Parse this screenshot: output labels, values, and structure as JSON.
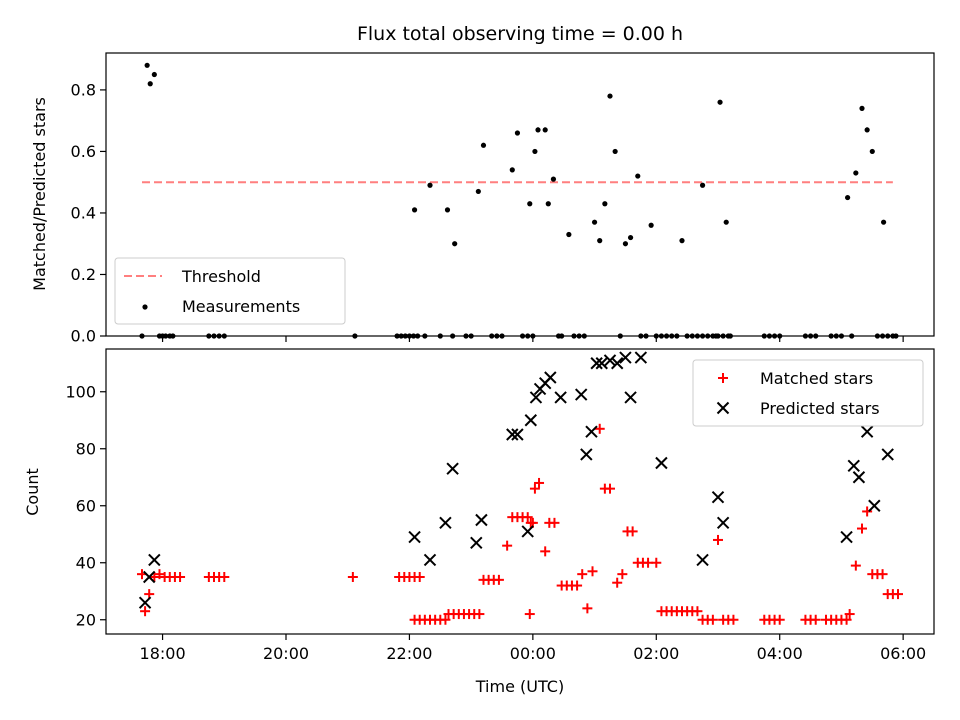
{
  "chart_data": [
    {
      "type": "scatter",
      "title": "Flux total observing time = 0.00 h",
      "xlabel": "",
      "ylabel": "Matched/Predicted stars",
      "ylim": [
        0,
        0.92
      ],
      "yticks": [
        "0.0",
        "0.2",
        "0.4",
        "0.6",
        "0.8"
      ],
      "xlim": [
        "17:05",
        "06:30"
      ],
      "grid": false,
      "legend_placement": "lower-left",
      "legend": [
        {
          "label": "Threshold",
          "kind": "dashed-line",
          "color": "#ff7f7f"
        },
        {
          "label": "Measurements",
          "kind": "dot",
          "color": "#000000"
        }
      ],
      "threshold": {
        "name": "Threshold",
        "value": 0.5,
        "x_range": [
          "17:40",
          "05:50"
        ]
      },
      "series": [
        {
          "name": "Measurements",
          "color": "#000000",
          "points": [
            [
              "17:40",
              0
            ],
            [
              "17:45",
              0.88
            ],
            [
              "17:48",
              0.82
            ],
            [
              "17:52",
              0.85
            ],
            [
              "17:57",
              0
            ],
            [
              "18:00",
              0
            ],
            [
              "18:03",
              0
            ],
            [
              "18:07",
              0
            ],
            [
              "18:10",
              0
            ],
            [
              "18:45",
              0
            ],
            [
              "18:50",
              0
            ],
            [
              "18:55",
              0
            ],
            [
              "19:00",
              0
            ],
            [
              "21:07",
              0
            ],
            [
              "21:48",
              0
            ],
            [
              "21:52",
              0
            ],
            [
              "21:56",
              0
            ],
            [
              "22:00",
              0
            ],
            [
              "22:04",
              0
            ],
            [
              "22:08",
              0
            ],
            [
              "22:05",
              0.41
            ],
            [
              "22:15",
              0
            ],
            [
              "22:20",
              0.49
            ],
            [
              "22:30",
              0
            ],
            [
              "22:37",
              0.41
            ],
            [
              "22:42",
              0
            ],
            [
              "22:44",
              0.3
            ],
            [
              "22:55",
              0
            ],
            [
              "23:00",
              0
            ],
            [
              "23:07",
              0.47
            ],
            [
              "23:12",
              0.62
            ],
            [
              "23:20",
              0
            ],
            [
              "23:25",
              0
            ],
            [
              "23:30",
              0
            ],
            [
              "23:40",
              0.54
            ],
            [
              "23:45",
              0.66
            ],
            [
              "23:50",
              0
            ],
            [
              "23:55",
              0
            ],
            [
              "23:57",
              0.43
            ],
            [
              "00:00",
              0
            ],
            [
              "00:02",
              0.6
            ],
            [
              "00:05",
              0.67
            ],
            [
              "00:12",
              0.67
            ],
            [
              "00:15",
              0.43
            ],
            [
              "00:20",
              0.51
            ],
            [
              "00:25",
              0
            ],
            [
              "00:28",
              0
            ],
            [
              "00:35",
              0.33
            ],
            [
              "00:40",
              0
            ],
            [
              "00:45",
              0
            ],
            [
              "00:50",
              0
            ],
            [
              "01:00",
              0.37
            ],
            [
              "01:05",
              0.31
            ],
            [
              "01:10",
              0.43
            ],
            [
              "01:15",
              0.78
            ],
            [
              "01:20",
              0.6
            ],
            [
              "01:25",
              0
            ],
            [
              "01:30",
              0.3
            ],
            [
              "01:35",
              0.32
            ],
            [
              "01:42",
              0.52
            ],
            [
              "01:45",
              0
            ],
            [
              "01:50",
              0
            ],
            [
              "01:55",
              0.36
            ],
            [
              "02:00",
              0
            ],
            [
              "02:05",
              0
            ],
            [
              "02:10",
              0
            ],
            [
              "02:15",
              0
            ],
            [
              "02:20",
              0
            ],
            [
              "02:25",
              0.31
            ],
            [
              "02:30",
              0
            ],
            [
              "02:35",
              0
            ],
            [
              "02:40",
              0
            ],
            [
              "02:45",
              0
            ],
            [
              "02:50",
              0
            ],
            [
              "02:55",
              0
            ],
            [
              "03:00",
              0
            ],
            [
              "03:05",
              0
            ],
            [
              "03:10",
              0
            ],
            [
              "02:45",
              0.49
            ],
            [
              "02:58",
              0
            ],
            [
              "03:02",
              0.76
            ],
            [
              "03:08",
              0.37
            ],
            [
              "03:12",
              0
            ],
            [
              "03:45",
              0
            ],
            [
              "03:50",
              0
            ],
            [
              "03:55",
              0
            ],
            [
              "04:00",
              0
            ],
            [
              "04:25",
              0
            ],
            [
              "04:30",
              0
            ],
            [
              "04:35",
              0
            ],
            [
              "04:50",
              0
            ],
            [
              "04:55",
              0
            ],
            [
              "05:00",
              0
            ],
            [
              "05:06",
              0.45
            ],
            [
              "05:10",
              0
            ],
            [
              "05:14",
              0.53
            ],
            [
              "05:20",
              0.74
            ],
            [
              "05:25",
              0.67
            ],
            [
              "05:30",
              0.6
            ],
            [
              "05:35",
              0
            ],
            [
              "05:40",
              0
            ],
            [
              "05:45",
              0
            ],
            [
              "05:41",
              0.37
            ],
            [
              "05:50",
              0
            ],
            [
              "05:53",
              0
            ]
          ]
        }
      ]
    },
    {
      "type": "scatter",
      "title": "",
      "xlabel": "Time (UTC)",
      "ylabel": "Count",
      "ylim": [
        15,
        115
      ],
      "yticks": [
        "20",
        "40",
        "60",
        "80",
        "100"
      ],
      "xlim": [
        "17:05",
        "06:30"
      ],
      "xticks": [
        "18:00",
        "20:00",
        "22:00",
        "00:00",
        "02:00",
        "04:00",
        "06:00"
      ],
      "grid": false,
      "legend_placement": "top-right",
      "legend": [
        {
          "label": "Matched stars",
          "kind": "plus",
          "color": "#ff0000"
        },
        {
          "label": "Predicted stars",
          "kind": "x",
          "color": "#000000"
        }
      ],
      "series": [
        {
          "name": "Matched stars",
          "color": "#ff0000",
          "marker": "plus",
          "points": [
            [
              "17:40",
              36
            ],
            [
              "17:43",
              23
            ],
            [
              "17:47",
              29
            ],
            [
              "17:52",
              35
            ],
            [
              "17:57",
              36
            ],
            [
              "18:02",
              35
            ],
            [
              "18:07",
              35
            ],
            [
              "18:12",
              35
            ],
            [
              "18:17",
              35
            ],
            [
              "18:45",
              35
            ],
            [
              "18:50",
              35
            ],
            [
              "18:55",
              35
            ],
            [
              "19:00",
              35
            ],
            [
              "21:05",
              35
            ],
            [
              "21:50",
              35
            ],
            [
              "21:55",
              35
            ],
            [
              "22:00",
              35
            ],
            [
              "22:05",
              35
            ],
            [
              "22:10",
              35
            ],
            [
              "22:05",
              20
            ],
            [
              "22:10",
              20
            ],
            [
              "22:15",
              20
            ],
            [
              "22:20",
              20
            ],
            [
              "22:25",
              20
            ],
            [
              "22:30",
              20
            ],
            [
              "22:35",
              20
            ],
            [
              "22:38",
              22
            ],
            [
              "22:43",
              22
            ],
            [
              "22:48",
              22
            ],
            [
              "22:53",
              22
            ],
            [
              "22:58",
              22
            ],
            [
              "23:03",
              22
            ],
            [
              "23:08",
              22
            ],
            [
              "23:12",
              34
            ],
            [
              "23:17",
              34
            ],
            [
              "23:22",
              34
            ],
            [
              "23:27",
              34
            ],
            [
              "23:35",
              46
            ],
            [
              "23:40",
              56
            ],
            [
              "23:45",
              56
            ],
            [
              "23:50",
              56
            ],
            [
              "23:55",
              56
            ],
            [
              "23:57",
              22
            ],
            [
              "23:58",
              54
            ],
            [
              "00:00",
              54
            ],
            [
              "00:02",
              66
            ],
            [
              "00:06",
              68
            ],
            [
              "00:12",
              44
            ],
            [
              "00:16",
              54
            ],
            [
              "00:21",
              54
            ],
            [
              "00:28",
              32
            ],
            [
              "00:33",
              32
            ],
            [
              "00:38",
              32
            ],
            [
              "00:43",
              32
            ],
            [
              "00:48",
              36
            ],
            [
              "00:53",
              24
            ],
            [
              "00:58",
              37
            ],
            [
              "01:05",
              87
            ],
            [
              "01:10",
              66
            ],
            [
              "01:15",
              66
            ],
            [
              "01:22",
              33
            ],
            [
              "01:27",
              36
            ],
            [
              "01:32",
              51
            ],
            [
              "01:37",
              51
            ],
            [
              "01:42",
              40
            ],
            [
              "01:47",
              40
            ],
            [
              "01:52",
              40
            ],
            [
              "02:00",
              40
            ],
            [
              "02:05",
              23
            ],
            [
              "02:10",
              23
            ],
            [
              "02:15",
              23
            ],
            [
              "02:20",
              23
            ],
            [
              "02:25",
              23
            ],
            [
              "02:30",
              23
            ],
            [
              "02:35",
              23
            ],
            [
              "02:40",
              23
            ],
            [
              "02:45",
              20
            ],
            [
              "02:50",
              20
            ],
            [
              "02:55",
              20
            ],
            [
              "03:00",
              48
            ],
            [
              "03:05",
              20
            ],
            [
              "03:10",
              20
            ],
            [
              "03:15",
              20
            ],
            [
              "03:45",
              20
            ],
            [
              "03:50",
              20
            ],
            [
              "03:55",
              20
            ],
            [
              "04:00",
              20
            ],
            [
              "04:25",
              20
            ],
            [
              "04:30",
              20
            ],
            [
              "04:35",
              20
            ],
            [
              "04:45",
              20
            ],
            [
              "04:50",
              20
            ],
            [
              "04:55",
              20
            ],
            [
              "05:00",
              20
            ],
            [
              "05:05",
              20
            ],
            [
              "05:08",
              22
            ],
            [
              "05:14",
              39
            ],
            [
              "05:20",
              52
            ],
            [
              "05:25",
              58
            ],
            [
              "05:30",
              36
            ],
            [
              "05:35",
              36
            ],
            [
              "05:40",
              36
            ],
            [
              "05:45",
              29
            ],
            [
              "05:50",
              29
            ],
            [
              "05:55",
              29
            ]
          ]
        },
        {
          "name": "Predicted stars",
          "color": "#000000",
          "marker": "x",
          "points": [
            [
              "17:43",
              26
            ],
            [
              "17:47",
              35
            ],
            [
              "17:52",
              41
            ],
            [
              "22:05",
              49
            ],
            [
              "22:20",
              41
            ],
            [
              "22:35",
              54
            ],
            [
              "22:42",
              73
            ],
            [
              "23:05",
              47
            ],
            [
              "23:10",
              55
            ],
            [
              "23:40",
              85
            ],
            [
              "23:45",
              85
            ],
            [
              "23:55",
              51
            ],
            [
              "23:58",
              90
            ],
            [
              "00:03",
              98
            ],
            [
              "00:07",
              101
            ],
            [
              "00:12",
              103
            ],
            [
              "00:17",
              105
            ],
            [
              "00:27",
              98
            ],
            [
              "00:47",
              99
            ],
            [
              "00:52",
              78
            ],
            [
              "00:57",
              86
            ],
            [
              "01:02",
              110
            ],
            [
              "01:07",
              110
            ],
            [
              "01:15",
              111
            ],
            [
              "01:22",
              110
            ],
            [
              "01:30",
              112
            ],
            [
              "01:35",
              98
            ],
            [
              "01:45",
              112
            ],
            [
              "02:05",
              75
            ],
            [
              "02:45",
              41
            ],
            [
              "03:00",
              63
            ],
            [
              "03:05",
              54
            ],
            [
              "05:05",
              49
            ],
            [
              "05:12",
              74
            ],
            [
              "05:17",
              70
            ],
            [
              "05:25",
              86
            ],
            [
              "05:32",
              60
            ],
            [
              "05:45",
              78
            ]
          ]
        }
      ]
    }
  ]
}
